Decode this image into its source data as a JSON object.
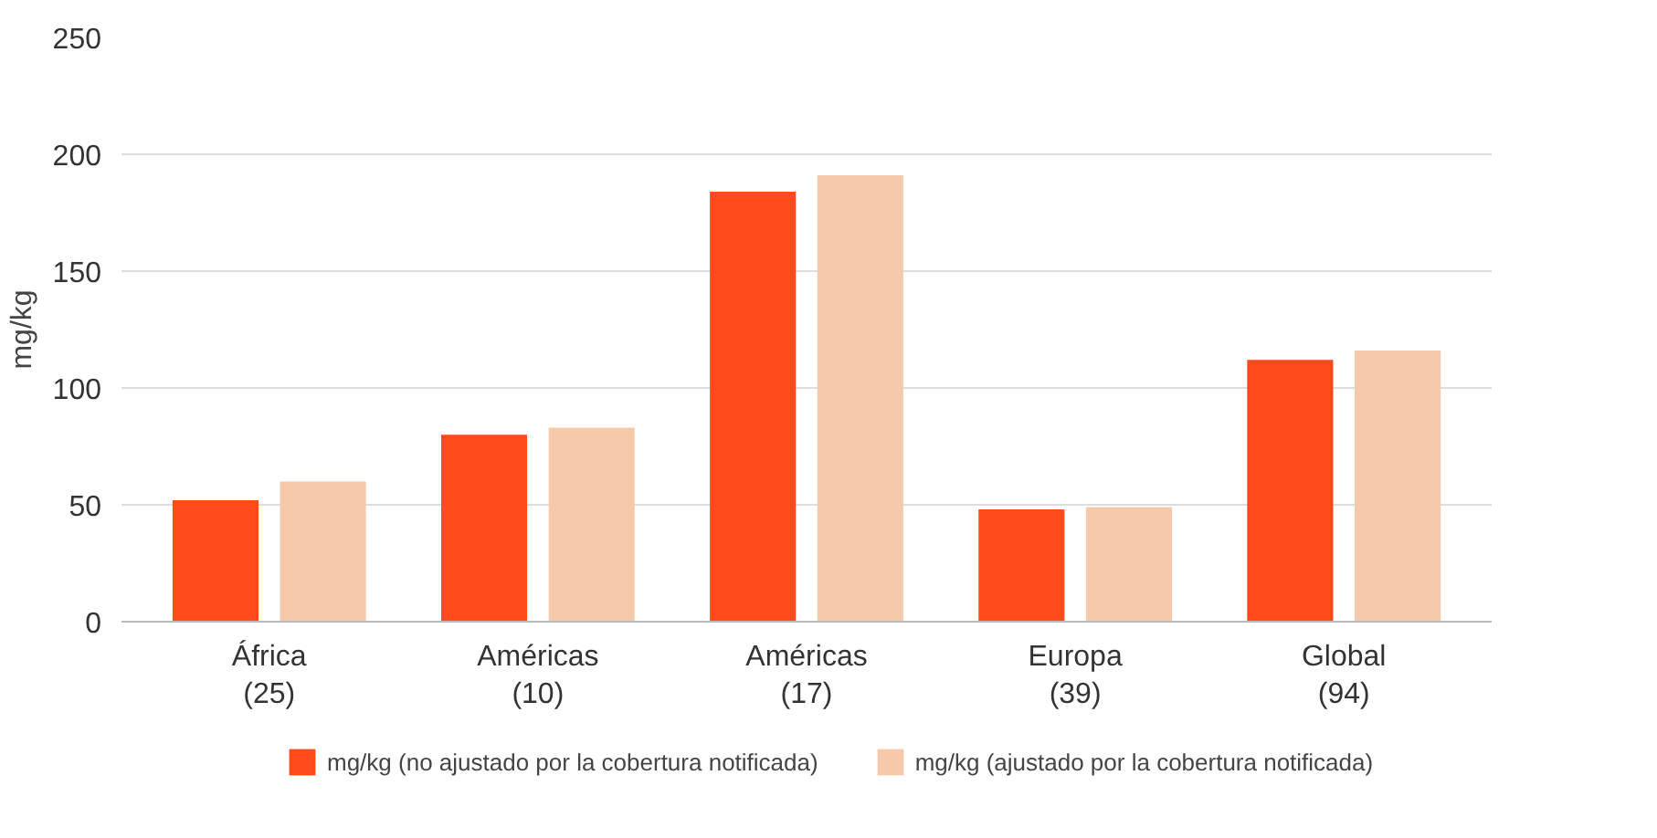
{
  "chart_data": {
    "type": "bar",
    "ylabel": "mg/kg",
    "categories": [
      "África\n(25)",
      "Américas\n(10)",
      "Américas\n(17)",
      "Europa\n(39)",
      "Global\n(94)"
    ],
    "series": [
      {
        "name": "mg/kg (no ajustado por la cobertura notificada)",
        "color": "#ff4a1c",
        "values": [
          52,
          80,
          184,
          48,
          112
        ]
      },
      {
        "name": "mg/kg (ajustado por la cobertura notificada)",
        "color": "#f7c9ab",
        "values": [
          60,
          83,
          191,
          49,
          116
        ]
      }
    ],
    "ylim": [
      0,
      250
    ],
    "yticks": [
      0,
      50,
      100,
      150,
      200,
      250
    ],
    "grid": "y",
    "legend": "bottom"
  }
}
